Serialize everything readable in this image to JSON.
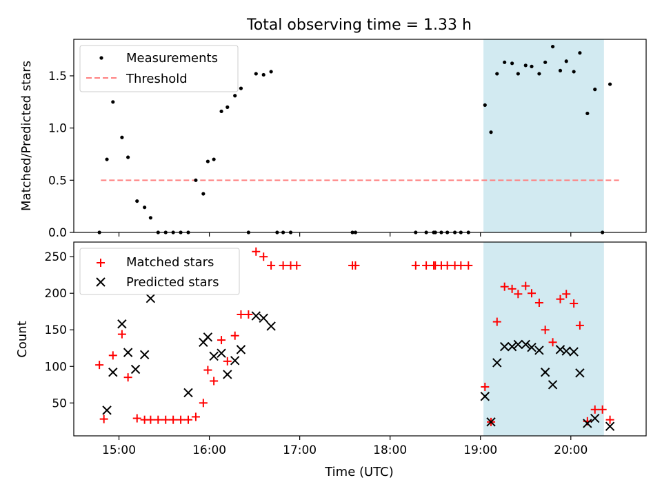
{
  "title": "Total observing time = 1.33 h",
  "xlabel": "Time (UTC)",
  "xticks": [
    {
      "t": 15.0,
      "label": "15:00"
    },
    {
      "t": 16.0,
      "label": "16:00"
    },
    {
      "t": 17.0,
      "label": "17:00"
    },
    {
      "t": 18.0,
      "label": "18:00"
    },
    {
      "t": 19.0,
      "label": "19:00"
    },
    {
      "t": 20.0,
      "label": "20:00"
    }
  ],
  "colors": {
    "matched": "#ff0000",
    "predicted": "#000000",
    "threshold": "#ff7f7f",
    "shade": "#add8e6"
  },
  "chart_data": [
    {
      "type": "scatter",
      "ylabel": "Matched/Predicted stars",
      "xlim": [
        "14:30",
        "20:50"
      ],
      "ylim": [
        0,
        1.85
      ],
      "yticks": [
        0.0,
        0.5,
        1.0,
        1.5
      ],
      "ytick_labels": [
        "0.0",
        "0.5",
        "1.0",
        "1.5"
      ],
      "shaded_interval": [
        "19:02",
        "20:22"
      ],
      "legend_position": "upper left",
      "threshold": {
        "name": "Threshold",
        "value": 0.5,
        "x_range": [
          "14:48",
          "20:32"
        ],
        "style": "dashed"
      },
      "series": [
        {
          "name": "Measurements",
          "marker": "dot",
          "points": [
            [
              "14:47",
              0
            ],
            [
              "14:52",
              0.7
            ],
            [
              "14:56",
              1.25
            ],
            [
              "15:02",
              0.91
            ],
            [
              "15:06",
              0.72
            ],
            [
              "15:12",
              0.3
            ],
            [
              "15:17",
              0.24
            ],
            [
              "15:21",
              0.14
            ],
            [
              "15:26",
              0
            ],
            [
              "15:31",
              0
            ],
            [
              "15:36",
              0
            ],
            [
              "15:41",
              0
            ],
            [
              "15:46",
              0
            ],
            [
              "15:51",
              0.5
            ],
            [
              "15:56",
              0.37
            ],
            [
              "15:59",
              0.68
            ],
            [
              "16:03",
              0.7
            ],
            [
              "16:08",
              1.16
            ],
            [
              "16:12",
              1.2
            ],
            [
              "16:17",
              1.31
            ],
            [
              "16:21",
              1.38
            ],
            [
              "16:26",
              0
            ],
            [
              "16:31",
              1.52
            ],
            [
              "16:36",
              1.51
            ],
            [
              "16:41",
              1.54
            ],
            [
              "16:45",
              0
            ],
            [
              "16:49",
              0
            ],
            [
              "16:54",
              0
            ],
            [
              "17:35",
              0
            ],
            [
              "17:37",
              0
            ],
            [
              "18:17",
              0
            ],
            [
              "18:24",
              0
            ],
            [
              "18:29",
              0
            ],
            [
              "18:30",
              0
            ],
            [
              "18:34",
              0
            ],
            [
              "18:38",
              0
            ],
            [
              "18:43",
              0
            ],
            [
              "18:47",
              0
            ],
            [
              "18:52",
              0
            ],
            [
              "19:03",
              1.22
            ],
            [
              "19:07",
              0.96
            ],
            [
              "19:11",
              1.52
            ],
            [
              "19:16",
              1.63
            ],
            [
              "19:21",
              1.62
            ],
            [
              "19:25",
              1.52
            ],
            [
              "19:30",
              1.6
            ],
            [
              "19:34",
              1.59
            ],
            [
              "19:39",
              1.52
            ],
            [
              "19:43",
              1.63
            ],
            [
              "19:48",
              1.78
            ],
            [
              "19:53",
              1.55
            ],
            [
              "19:57",
              1.64
            ],
            [
              "20:02",
              1.54
            ],
            [
              "20:06",
              1.72
            ],
            [
              "20:11",
              1.14
            ],
            [
              "20:16",
              1.37
            ],
            [
              "20:21",
              0
            ],
            [
              "20:26",
              1.42
            ]
          ]
        }
      ]
    },
    {
      "type": "scatter",
      "ylabel": "Count",
      "xlim": [
        "14:30",
        "20:50"
      ],
      "ylim": [
        5,
        270
      ],
      "yticks": [
        50,
        100,
        150,
        200,
        250
      ],
      "ytick_labels": [
        "50",
        "100",
        "150",
        "200",
        "250"
      ],
      "shaded_interval": [
        "19:02",
        "20:22"
      ],
      "legend_position": "upper left",
      "series": [
        {
          "name": "Matched stars",
          "marker": "plus",
          "points": [
            [
              "14:47",
              102
            ],
            [
              "14:50",
              28
            ],
            [
              "14:56",
              115
            ],
            [
              "15:02",
              144
            ],
            [
              "15:06",
              85
            ],
            [
              "15:12",
              29
            ],
            [
              "15:17",
              27
            ],
            [
              "15:21",
              27
            ],
            [
              "15:26",
              27
            ],
            [
              "15:31",
              27
            ],
            [
              "15:36",
              27
            ],
            [
              "15:41",
              27
            ],
            [
              "15:46",
              27
            ],
            [
              "15:51",
              31
            ],
            [
              "15:56",
              50
            ],
            [
              "15:59",
              95
            ],
            [
              "16:03",
              80
            ],
            [
              "16:08",
              136
            ],
            [
              "16:12",
              107
            ],
            [
              "16:17",
              142
            ],
            [
              "16:21",
              171
            ],
            [
              "16:26",
              171
            ],
            [
              "16:31",
              257
            ],
            [
              "16:36",
              250
            ],
            [
              "16:41",
              238
            ],
            [
              "16:49",
              238
            ],
            [
              "16:54",
              238
            ],
            [
              "16:58",
              238
            ],
            [
              "17:35",
              238
            ],
            [
              "17:37",
              238
            ],
            [
              "18:17",
              238
            ],
            [
              "18:24",
              238
            ],
            [
              "18:29",
              238
            ],
            [
              "18:30",
              238
            ],
            [
              "18:34",
              238
            ],
            [
              "18:38",
              238
            ],
            [
              "18:43",
              238
            ],
            [
              "18:47",
              238
            ],
            [
              "18:52",
              238
            ],
            [
              "19:03",
              72
            ],
            [
              "19:07",
              24
            ],
            [
              "19:11",
              161
            ],
            [
              "19:16",
              209
            ],
            [
              "19:21",
              206
            ],
            [
              "19:25",
              199
            ],
            [
              "19:30",
              210
            ],
            [
              "19:34",
              200
            ],
            [
              "19:39",
              187
            ],
            [
              "19:43",
              150
            ],
            [
              "19:48",
              133
            ],
            [
              "19:53",
              192
            ],
            [
              "19:57",
              199
            ],
            [
              "20:02",
              186
            ],
            [
              "20:06",
              156
            ],
            [
              "20:11",
              25
            ],
            [
              "20:16",
              41
            ],
            [
              "20:21",
              41
            ],
            [
              "20:26",
              27
            ]
          ]
        },
        {
          "name": "Predicted stars",
          "marker": "x",
          "points": [
            [
              "14:52",
              40
            ],
            [
              "15:02",
              158
            ],
            [
              "14:56",
              92
            ],
            [
              "15:06",
              119
            ],
            [
              "15:11",
              96
            ],
            [
              "15:17",
              116
            ],
            [
              "15:21",
              193
            ],
            [
              "15:46",
              64
            ],
            [
              "15:56",
              133
            ],
            [
              "15:59",
              140
            ],
            [
              "16:03",
              114
            ],
            [
              "16:08",
              118
            ],
            [
              "16:12",
              89
            ],
            [
              "16:17",
              108
            ],
            [
              "16:21",
              123
            ],
            [
              "16:31",
              169
            ],
            [
              "16:36",
              166
            ],
            [
              "16:41",
              155
            ],
            [
              "19:03",
              59
            ],
            [
              "19:07",
              24
            ],
            [
              "19:11",
              105
            ],
            [
              "19:16",
              127
            ],
            [
              "19:21",
              127
            ],
            [
              "19:25",
              130
            ],
            [
              "19:30",
              130
            ],
            [
              "19:34",
              126
            ],
            [
              "19:39",
              122
            ],
            [
              "19:43",
              92
            ],
            [
              "19:48",
              75
            ],
            [
              "19:53",
              123
            ],
            [
              "19:57",
              121
            ],
            [
              "20:02",
              120
            ],
            [
              "20:06",
              91
            ],
            [
              "20:11",
              22
            ],
            [
              "20:16",
              29
            ],
            [
              "20:26",
              18
            ]
          ]
        }
      ]
    }
  ]
}
